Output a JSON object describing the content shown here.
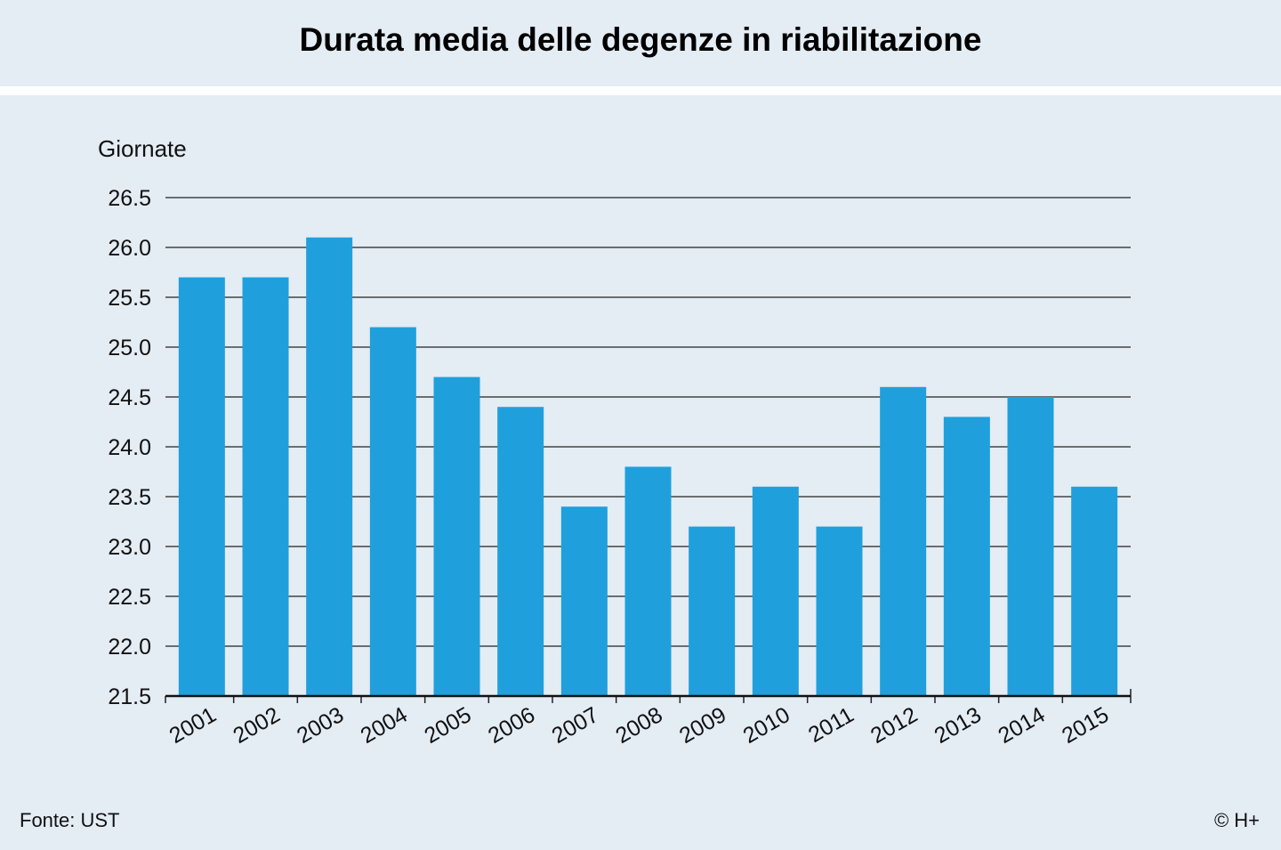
{
  "chart_data": {
    "type": "bar",
    "title": "Durata media delle degenze in riabilitazione",
    "xlabel": "",
    "ylabel": "Giornate",
    "categories": [
      "2001",
      "2002",
      "2003",
      "2004",
      "2005",
      "2006",
      "2007",
      "2008",
      "2009",
      "2010",
      "2011",
      "2012",
      "2013",
      "2014",
      "2015"
    ],
    "values": [
      25.7,
      25.7,
      26.1,
      25.2,
      24.7,
      24.4,
      23.4,
      23.8,
      23.2,
      23.6,
      23.2,
      24.6,
      24.3,
      24.5,
      23.6
    ],
    "ylim": [
      21.5,
      26.5
    ],
    "yticks": [
      "21.5",
      "22.0",
      "22.5",
      "23.0",
      "23.5",
      "24.0",
      "24.5",
      "25.0",
      "25.5",
      "26.0",
      "26.5"
    ],
    "grid": true,
    "bar_color": "#1fa0dc"
  },
  "footer": {
    "source": "Fonte: UST",
    "copyright": "© H+"
  }
}
